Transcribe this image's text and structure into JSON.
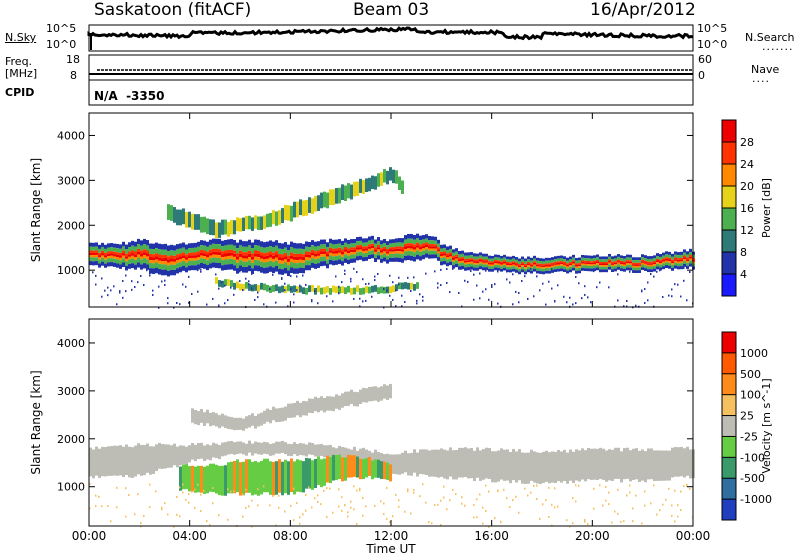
{
  "header": {
    "station": "Saskatoon (fitACF)",
    "beam": "Beam 03",
    "date": "16/Apr/2012"
  },
  "nsky_panel": {
    "left_label": "N.Sky",
    "right_label": "N.Search",
    "left_ticks": [
      "10^5",
      "10^0"
    ],
    "right_ticks": [
      "10^5",
      "10^0"
    ]
  },
  "freq_panel": {
    "left_label_1": "Freq.",
    "left_label_2": "[MHz]",
    "left_ticks": [
      "18",
      "8"
    ],
    "right_label": "Nave",
    "right_ticks": [
      "60",
      "0"
    ]
  },
  "cpid_panel": {
    "label": "CPID",
    "value": "N/A  -3350"
  },
  "x_axis": {
    "label": "Time UT",
    "ticks": [
      "00:00",
      "04:00",
      "08:00",
      "12:00",
      "16:00",
      "20:00",
      "00:00"
    ]
  },
  "chart_data": [
    {
      "type": "heatmap",
      "quantity": "Power",
      "xlabel": "Time UT",
      "ylabel": "Slant Range [km]",
      "xlim": [
        0,
        24
      ],
      "ylim": [
        180,
        4500
      ],
      "yticks": [
        1000,
        2000,
        3000,
        4000
      ],
      "colorbar": {
        "label": "Power [dB]",
        "ticks": [
          "4",
          "8",
          "12",
          "16",
          "20",
          "24",
          "28"
        ],
        "colors": [
          "#1a1aff",
          "#2233aa",
          "#2d7a78",
          "#4caf50",
          "#e6d21a",
          "#ff8800",
          "#ff3300",
          "#ee0000"
        ]
      },
      "bands": [
        {
          "name": "main",
          "points": [
            [
              0,
              1350,
              500
            ],
            [
              1,
              1300,
              520
            ],
            [
              2,
              1350,
              650
            ],
            [
              3,
              1200,
              700
            ],
            [
              4,
              1300,
              600
            ],
            [
              5,
              1350,
              650
            ],
            [
              6,
              1300,
              700
            ],
            [
              7,
              1300,
              700
            ],
            [
              8,
              1250,
              700
            ],
            [
              9,
              1350,
              600
            ],
            [
              10,
              1400,
              550
            ],
            [
              11,
              1500,
              500
            ],
            [
              12,
              1400,
              500
            ],
            [
              12.8,
              1500,
              600
            ],
            [
              13.5,
              1550,
              500
            ],
            [
              14,
              1350,
              450
            ],
            [
              15,
              1200,
              400
            ],
            [
              16,
              1150,
              350
            ],
            [
              18,
              1100,
              350
            ],
            [
              20,
              1150,
              350
            ],
            [
              22,
              1150,
              350
            ],
            [
              24,
              1250,
              400
            ]
          ]
        },
        {
          "name": "upper",
          "points": [
            [
              3,
              2300,
              350
            ],
            [
              4,
              2100,
              350
            ],
            [
              5,
              1900,
              350
            ],
            [
              6,
              2000,
              300
            ],
            [
              7,
              2100,
              300
            ],
            [
              8,
              2300,
              350
            ],
            [
              9,
              2500,
              350
            ],
            [
              10,
              2700,
              350
            ],
            [
              11,
              2900,
              300
            ],
            [
              12,
              3150,
              300
            ],
            [
              12.5,
              2800,
              300
            ]
          ]
        },
        {
          "name": "lower",
          "points": [
            [
              5,
              750,
              150
            ],
            [
              6,
              650,
              150
            ],
            [
              7,
              600,
              150
            ],
            [
              8,
              580,
              150
            ],
            [
              9,
              550,
              150
            ],
            [
              10,
              550,
              150
            ],
            [
              11,
              570,
              150
            ],
            [
              12,
              600,
              150
            ],
            [
              13,
              650,
              150
            ]
          ]
        }
      ]
    },
    {
      "type": "heatmap",
      "quantity": "Velocity",
      "xlabel": "Time UT",
      "ylabel": "Slant Range [km]",
      "xlim": [
        0,
        24
      ],
      "ylim": [
        180,
        4500
      ],
      "yticks": [
        1000,
        2000,
        3000,
        4000
      ],
      "colorbar": {
        "label": "Velocity [m s^-1]",
        "ticks": [
          "1000",
          "500",
          "100",
          "25",
          "-25",
          "-100",
          "-500",
          "-1000"
        ],
        "colors": [
          "#1f3fbf",
          "#2e6fa0",
          "#3a9a6a",
          "#66cc44",
          "#bdbdb5",
          "#f5c060",
          "#ff8c1a",
          "#ff5a00",
          "#ee0000"
        ]
      },
      "bands": [
        {
          "name": "ground",
          "points": [
            [
              0,
              1500,
              600
            ],
            [
              2,
              1550,
              650
            ],
            [
              4,
              1700,
              350
            ],
            [
              6,
              1800,
              250
            ],
            [
              8,
              1800,
              250
            ],
            [
              10,
              1700,
              250
            ],
            [
              12,
              1500,
              400
            ],
            [
              14,
              1500,
              600
            ],
            [
              16,
              1450,
              650
            ],
            [
              18,
              1400,
              650
            ],
            [
              20,
              1450,
              650
            ],
            [
              22,
              1450,
              650
            ],
            [
              24,
              1500,
              600
            ]
          ]
        },
        {
          "name": "ionosphere",
          "points": [
            [
              3.5,
              1200,
              500
            ],
            [
              5,
              1150,
              600
            ],
            [
              6,
              1200,
              700
            ],
            [
              7,
              1200,
              700
            ],
            [
              8,
              1200,
              700
            ],
            [
              9,
              1300,
              600
            ],
            [
              10,
              1400,
              500
            ],
            [
              11,
              1400,
              400
            ],
            [
              12,
              1300,
              350
            ]
          ]
        },
        {
          "name": "upper_grey",
          "points": [
            [
              4,
              2500,
              300
            ],
            [
              6,
              2300,
              250
            ],
            [
              8,
              2600,
              300
            ],
            [
              10,
              2800,
              300
            ],
            [
              12,
              3000,
              300
            ]
          ]
        }
      ]
    }
  ]
}
